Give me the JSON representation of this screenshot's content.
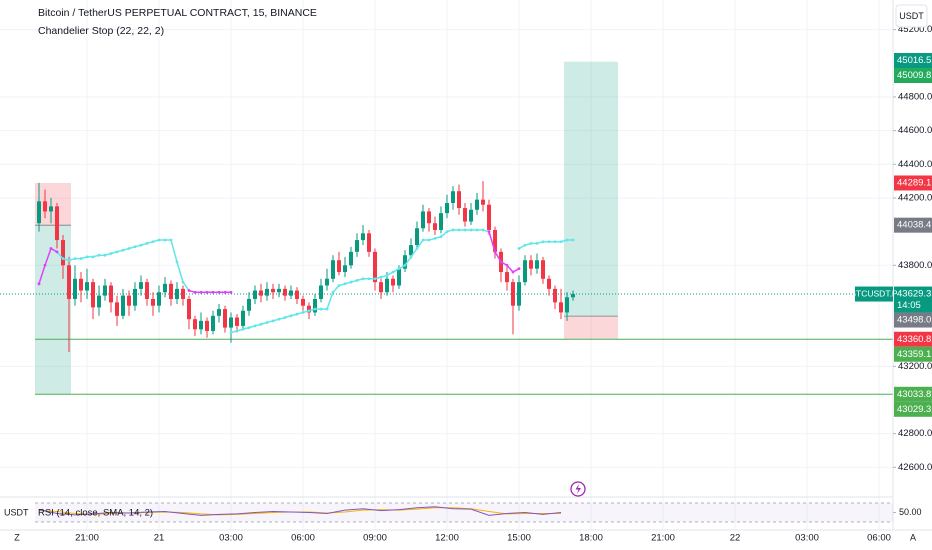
{
  "chart_data": {
    "type": "candlestick",
    "title": "Bitcoin / TetherUS PERPETUAL CONTRACT, 15, BINANCE",
    "subtitle": "Chandelier Stop (22, 22, 2)",
    "currency": "USDT",
    "axis_buttons": [
      "Z",
      "A"
    ],
    "up_color": "#089981",
    "down_color": "#f23645",
    "grid": true,
    "xlim": [
      -6.5,
      142.33
    ],
    "ylim": [
      42495,
      45376
    ],
    "xticks": [
      {
        "value": 8,
        "label": "21:00"
      },
      {
        "value": 20,
        "label": "21"
      },
      {
        "value": 32,
        "label": "03:00"
      },
      {
        "value": 44,
        "label": "06:00"
      },
      {
        "value": 56,
        "label": "09:00"
      },
      {
        "value": 68,
        "label": "12:00"
      },
      {
        "value": 80,
        "label": "15:00"
      },
      {
        "value": 92,
        "label": "18:00"
      },
      {
        "value": 104,
        "label": "21:00"
      },
      {
        "value": 116,
        "label": "22"
      },
      {
        "value": 128,
        "label": "03:00"
      },
      {
        "value": 140,
        "label": "06:00"
      }
    ],
    "yticks": [
      {
        "value": 45200,
        "label": "45200.0"
      },
      {
        "value": 44800,
        "label": "44800.0"
      },
      {
        "value": 44600,
        "label": "44600.0"
      },
      {
        "value": 44400,
        "label": "44400.0"
      },
      {
        "value": 44200,
        "label": "44200.0"
      },
      {
        "value": 43800,
        "label": "43800.0"
      },
      {
        "value": 43200,
        "label": "43200.0"
      },
      {
        "value": 42800,
        "label": "42800.0"
      },
      {
        "value": 42600,
        "label": "42600.0"
      }
    ],
    "open": [
      44050,
      44180,
      44120,
      44150,
      43950,
      43800,
      43600,
      43720,
      43650,
      43700,
      43550,
      43620,
      43680,
      43580,
      43500,
      43620,
      43560,
      43660,
      43700,
      43600,
      43560,
      43640,
      43690,
      43600,
      43660,
      43600,
      43480,
      43420,
      43470,
      43410,
      43500,
      43540,
      43430,
      43490,
      43440,
      43530,
      43600,
      43650,
      43620,
      43660,
      43640,
      43660,
      43620,
      43650,
      43600,
      43560,
      43520,
      43600,
      43680,
      43720,
      43830,
      43760,
      43800,
      43880,
      43950,
      43990,
      43880,
      43700,
      43640,
      43720,
      43680,
      43780,
      43860,
      43920,
      44020,
      44120,
      44050,
      44010,
      44110,
      44170,
      44240,
      44140,
      44060,
      44130,
      44190,
      44160,
      44010,
      43880,
      43760,
      43700,
      43560,
      43700,
      43830,
      43780,
      43830,
      43720,
      43660,
      43580,
      43520,
      43610
    ],
    "high": [
      44290,
      44250,
      44200,
      44170,
      43980,
      43850,
      43800,
      43760,
      43780,
      43720,
      43680,
      43720,
      43700,
      43620,
      43660,
      43650,
      43700,
      43740,
      43720,
      43640,
      43680,
      43730,
      43710,
      43700,
      43680,
      43620,
      43500,
      43520,
      43490,
      43530,
      43570,
      43560,
      43520,
      43510,
      43560,
      43640,
      43680,
      43690,
      43700,
      43690,
      43690,
      43680,
      43680,
      43670,
      43620,
      43580,
      43630,
      43720,
      43780,
      43860,
      43880,
      43850,
      43910,
      43990,
      44040,
      44010,
      43900,
      43720,
      43760,
      43740,
      43800,
      43890,
      43960,
      44060,
      44160,
      44140,
      44090,
      44150,
      44220,
      44270,
      44280,
      44170,
      44170,
      44230,
      44300,
      44190,
      44030,
      43900,
      43790,
      43720,
      43740,
      43860,
      43860,
      43870,
      43850,
      43740,
      43680,
      43660,
      43640,
      43650
    ],
    "low": [
      44000,
      44080,
      44050,
      43900,
      43720,
      43285,
      43560,
      43580,
      43600,
      43480,
      43500,
      43590,
      43520,
      43440,
      43480,
      43500,
      43530,
      43620,
      43560,
      43500,
      43520,
      43610,
      43560,
      43570,
      43560,
      43420,
      43380,
      43390,
      43370,
      43390,
      43460,
      43400,
      43340,
      43400,
      43420,
      43500,
      43570,
      43580,
      43590,
      43600,
      43610,
      43590,
      43600,
      43570,
      43530,
      43480,
      43500,
      43580,
      43650,
      43700,
      43740,
      43730,
      43780,
      43850,
      43920,
      43850,
      43650,
      43600,
      43620,
      43640,
      43660,
      43760,
      43840,
      43900,
      44000,
      44000,
      43980,
      43990,
      44080,
      44130,
      44100,
      44030,
      44040,
      44100,
      44120,
      43980,
      43840,
      43700,
      43650,
      43390,
      43530,
      43680,
      43740,
      43750,
      43690,
      43620,
      43540,
      43480,
      43470,
      43590
    ],
    "close": [
      44180,
      44120,
      44150,
      43950,
      43800,
      43600,
      43720,
      43650,
      43700,
      43550,
      43620,
      43680,
      43580,
      43500,
      43620,
      43560,
      43660,
      43700,
      43600,
      43560,
      43640,
      43690,
      43600,
      43660,
      43600,
      43480,
      43420,
      43470,
      43410,
      43500,
      43540,
      43430,
      43490,
      43440,
      43530,
      43600,
      43650,
      43620,
      43660,
      43640,
      43660,
      43620,
      43650,
      43600,
      43560,
      43520,
      43600,
      43680,
      43720,
      43830,
      43760,
      43800,
      43880,
      43950,
      43990,
      43880,
      43700,
      43640,
      43720,
      43680,
      43780,
      43860,
      43920,
      44020,
      44120,
      44050,
      44010,
      44110,
      44170,
      44240,
      44140,
      44060,
      44130,
      44190,
      44160,
      44010,
      43880,
      43760,
      43700,
      43560,
      43700,
      43830,
      43780,
      43830,
      43720,
      43660,
      43580,
      43520,
      43610,
      43629.3
    ],
    "stop_series": [
      {
        "color": "#5ee6ea",
        "values": [
          null,
          null,
          null,
          43880,
          43840,
          43830,
          43840,
          43840,
          43850,
          43850,
          43860,
          43860,
          43870,
          43880,
          43890,
          43900,
          43910,
          43920,
          43930,
          43940,
          43950,
          43950,
          43950,
          43820,
          43700,
          43650,
          null,
          null,
          null,
          null,
          null,
          null,
          43400,
          43410,
          43420,
          43430,
          43440,
          43450,
          43460,
          43470,
          43480,
          43490,
          43500,
          43510,
          43520,
          43530,
          43540,
          43540,
          43540,
          43640,
          43680,
          43690,
          43700,
          43710,
          43720,
          43720,
          43720,
          43730,
          43740,
          43760,
          43780,
          43800,
          43850,
          43900,
          43950,
          43950,
          43960,
          43970,
          44000,
          44010,
          44010,
          44010,
          44010,
          44010,
          44010,
          44000,
          null,
          null,
          null,
          null,
          43900,
          43920,
          43930,
          43930,
          43940,
          43940,
          43940,
          43940,
          43950,
          43950
        ]
      },
      {
        "color": "#e040fb",
        "values": [
          43690,
          43800,
          43900,
          43880,
          null,
          null,
          null,
          null,
          null,
          null,
          null,
          null,
          null,
          null,
          null,
          null,
          null,
          null,
          null,
          null,
          null,
          null,
          null,
          null,
          null,
          43650,
          43640,
          43640,
          43640,
          43640,
          43640,
          43640,
          43640,
          null,
          null,
          null,
          null,
          null,
          null,
          null,
          null,
          null,
          null,
          null,
          null,
          null,
          null,
          null,
          null,
          null,
          null,
          null,
          null,
          null,
          null,
          null,
          null,
          null,
          null,
          null,
          null,
          null,
          null,
          null,
          null,
          null,
          null,
          null,
          null,
          null,
          null,
          null,
          null,
          null,
          null,
          44000,
          43880,
          43820,
          43800,
          43760,
          43780,
          null,
          null,
          null,
          null,
          null,
          null,
          null,
          null,
          null
        ]
      }
    ],
    "positions": [
      {
        "x": [
          -0.67,
          5.33
        ],
        "entry": 44038.4,
        "stop": 44289.1,
        "target": 43033.8
      },
      {
        "x": [
          87.5,
          96.5
        ],
        "entry": 43498,
        "stop": 43360.8,
        "target": 45009.8
      }
    ],
    "hlines": [
      {
        "value": 43360.8,
        "from": -0.67,
        "color": "#4caf50"
      },
      {
        "value": 43033.8,
        "from": -0.67,
        "color": "#4caf50"
      }
    ],
    "price_labels": [
      {
        "value": 45016.5,
        "color": "#089981"
      },
      {
        "value": 45009.8,
        "color": "#22ab5c"
      },
      {
        "value": 44289.1,
        "color": "#f23645"
      },
      {
        "value": 44038.4,
        "color": "#787b86"
      },
      {
        "value": 43629.3,
        "color": "#089981",
        "symbol": "BTCUSDT.P",
        "countdown": "14:05"
      },
      {
        "value": 43498,
        "label": "43498.0",
        "color": "#787b86"
      },
      {
        "value": 43360.8,
        "color": "#f23645"
      },
      {
        "value": 43359.1,
        "color": "#4caf50"
      },
      {
        "value": 43033.8,
        "color": "#4caf50"
      },
      {
        "value": 43029.3,
        "color": "#4caf50"
      }
    ],
    "rsi": {
      "title": "RSI (14, close, SMA, 14, 2)",
      "ylim": [
        30,
        70
      ],
      "yticks": [
        {
          "value": 50,
          "label": "50.00"
        }
      ],
      "x": [
        0,
        3,
        6,
        9,
        12,
        15,
        18,
        21,
        24,
        27,
        30,
        33,
        36,
        39,
        42,
        45,
        48,
        51,
        54,
        57,
        60,
        63,
        66,
        69,
        72,
        75,
        78,
        81,
        84,
        87
      ],
      "values": [
        56,
        48,
        45,
        47,
        50,
        49,
        51,
        52,
        48,
        44,
        46,
        47,
        50,
        52,
        51,
        50,
        48,
        55,
        58,
        54,
        56,
        60,
        62,
        58,
        57,
        44,
        48,
        50,
        46,
        50
      ],
      "sma": [
        54,
        52,
        48,
        46,
        48,
        49,
        50,
        51,
        50,
        47,
        45,
        46,
        48,
        50,
        51,
        51,
        49,
        51,
        55,
        56,
        55,
        57,
        60,
        60,
        58,
        52,
        47,
        48,
        48,
        48
      ],
      "color": "#7e57c2",
      "sma_color": "#f7b500"
    }
  }
}
